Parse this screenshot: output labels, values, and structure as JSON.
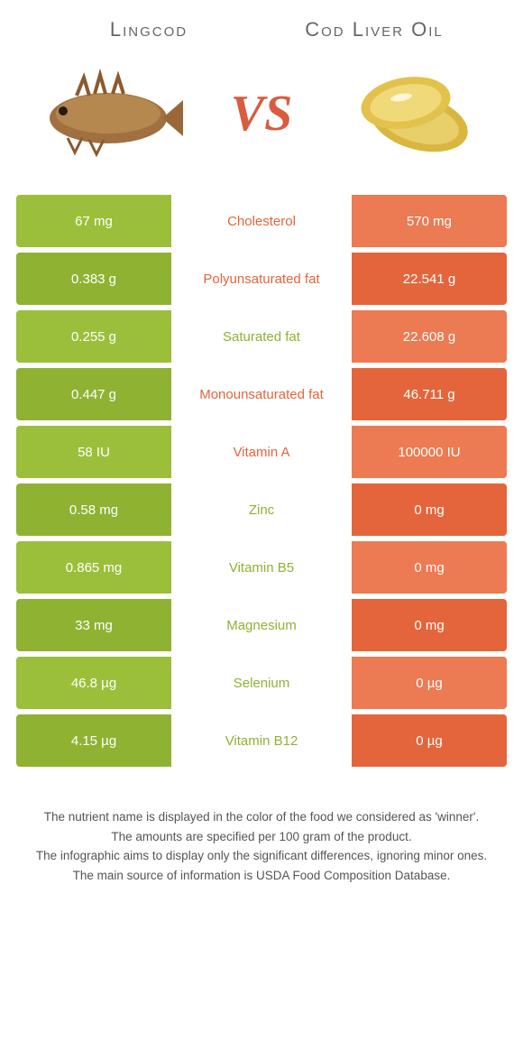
{
  "left_food": "Lingcod",
  "right_food": "Cod Liver Oil",
  "vs_label": "VS",
  "colors": {
    "left_a": "#9bbf3a",
    "left_b": "#8fb233",
    "right_a": "#ec7a52",
    "right_b": "#e4653b",
    "mid_left": "#8fb233",
    "mid_right": "#e4653b",
    "text": "#ffffff",
    "vs": "#d85c3e",
    "title": "#666666"
  },
  "rows": [
    {
      "label": "Cholesterol",
      "left": "67 mg",
      "right": "570 mg",
      "winner": "right"
    },
    {
      "label": "Polyunsaturated fat",
      "left": "0.383 g",
      "right": "22.541 g",
      "winner": "right"
    },
    {
      "label": "Saturated fat",
      "left": "0.255 g",
      "right": "22.608 g",
      "winner": "left"
    },
    {
      "label": "Monounsaturated fat",
      "left": "0.447 g",
      "right": "46.711 g",
      "winner": "right"
    },
    {
      "label": "Vitamin A",
      "left": "58 IU",
      "right": "100000 IU",
      "winner": "right"
    },
    {
      "label": "Zinc",
      "left": "0.58 mg",
      "right": "0 mg",
      "winner": "left"
    },
    {
      "label": "Vitamin B5",
      "left": "0.865 mg",
      "right": "0 mg",
      "winner": "left"
    },
    {
      "label": "Magnesium",
      "left": "33 mg",
      "right": "0 mg",
      "winner": "left"
    },
    {
      "label": "Selenium",
      "left": "46.8 µg",
      "right": "0 µg",
      "winner": "left"
    },
    {
      "label": "Vitamin B12",
      "left": "4.15 µg",
      "right": "0 µg",
      "winner": "left"
    }
  ],
  "notes": [
    "The nutrient name is displayed in the color of the food we considered as 'winner'.",
    "The amounts are specified per 100 gram of the product.",
    "The infographic aims to display only the significant differences, ignoring minor ones.",
    "The main source of information is USDA Food Composition Database."
  ]
}
